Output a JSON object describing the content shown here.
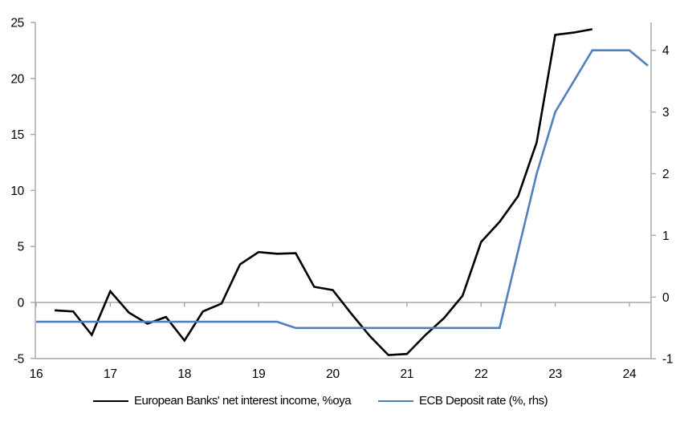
{
  "chart_data": {
    "type": "line",
    "title": "",
    "x_axis": {
      "tick_labels": [
        "16",
        "17",
        "18",
        "19",
        "20",
        "21",
        "22",
        "23",
        "24"
      ],
      "tick_values": [
        16,
        17,
        18,
        19,
        20,
        21,
        22,
        23,
        24
      ],
      "min": 16,
      "max": 24.3
    },
    "y_left": {
      "tick_labels": [
        "25",
        "20",
        "15",
        "10",
        "5",
        "0",
        "-5"
      ],
      "tick_values": [
        25,
        20,
        15,
        10,
        5,
        0,
        -5
      ],
      "min": -5,
      "max": 25,
      "zero_gridline": true
    },
    "y_right": {
      "tick_labels": [
        "4",
        "3",
        "2",
        "1",
        "0",
        "-1"
      ],
      "tick_values": [
        4,
        3,
        2,
        1,
        0,
        -1
      ],
      "min": -1,
      "max": 4.45
    },
    "series": [
      {
        "name": "European Banks' net interest income, %oya",
        "axis": "left",
        "color": "#000000",
        "x": [
          16.25,
          16.5,
          16.75,
          17,
          17.25,
          17.5,
          17.75,
          18,
          18.25,
          18.5,
          18.75,
          19,
          19.25,
          19.5,
          19.75,
          20,
          20.25,
          20.5,
          20.75,
          21,
          21.25,
          21.5,
          21.75,
          22,
          22.25,
          22.5,
          22.75,
          23,
          23.25,
          23.5
        ],
        "values": [
          -0.7,
          -0.8,
          -2.9,
          1.0,
          -0.9,
          -1.9,
          -1.3,
          -3.4,
          -0.8,
          -0.1,
          3.4,
          4.5,
          4.35,
          4.4,
          1.4,
          1.1,
          -1.0,
          -3.0,
          -4.7,
          -4.6,
          -2.9,
          -1.4,
          0.6,
          5.4,
          7.2,
          9.5,
          14.3,
          23.9,
          24.1,
          24.4
        ]
      },
      {
        "name": "ECB Deposit rate (%, rhs)",
        "axis": "right",
        "color": "#4F81BD",
        "x": [
          16,
          16.25,
          16.5,
          16.75,
          17,
          17.25,
          17.5,
          17.75,
          18,
          18.25,
          18.5,
          18.75,
          19,
          19.25,
          19.5,
          19.75,
          20,
          20.25,
          20.5,
          20.75,
          21,
          21.25,
          21.5,
          21.75,
          22,
          22.25,
          22.5,
          22.75,
          23,
          23.25,
          23.5,
          23.75,
          24,
          24.25
        ],
        "values": [
          -0.4,
          -0.4,
          -0.4,
          -0.4,
          -0.4,
          -0.4,
          -0.4,
          -0.4,
          -0.4,
          -0.4,
          -0.4,
          -0.4,
          -0.4,
          -0.4,
          -0.5,
          -0.5,
          -0.5,
          -0.5,
          -0.5,
          -0.5,
          -0.5,
          -0.5,
          -0.5,
          -0.5,
          -0.5,
          -0.5,
          0.75,
          2,
          3,
          3.5,
          4,
          4,
          4,
          3.75
        ]
      }
    ],
    "legend_position": "bottom",
    "grid": "zero-line-only",
    "colors": {
      "axis": "#A6A6A6",
      "zero_line": "#A6A6A6"
    }
  }
}
